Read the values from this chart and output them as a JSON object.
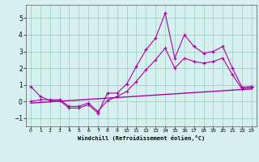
{
  "xlabel": "Windchill (Refroidissement éolien,°C)",
  "bg_color": "#d6f0f0",
  "line_color": "#aa00aa",
  "grid_color": "#99ccbb",
  "x_main": [
    0,
    1,
    2,
    3,
    4,
    5,
    6,
    7,
    8,
    9,
    10,
    11,
    12,
    13,
    14,
    15,
    16,
    17,
    18,
    19,
    20,
    21,
    22,
    23
  ],
  "y_line1": [
    0.9,
    0.3,
    0.05,
    0.05,
    -0.4,
    -0.4,
    -0.2,
    -0.7,
    0.5,
    0.5,
    1.05,
    2.1,
    3.1,
    3.8,
    5.3,
    2.6,
    4.0,
    3.3,
    2.9,
    3.0,
    3.3,
    2.0,
    0.85,
    0.9
  ],
  "y_line2": [
    0.0,
    0.1,
    0.1,
    0.1,
    -0.3,
    -0.3,
    -0.1,
    -0.6,
    0.05,
    0.3,
    0.6,
    1.2,
    1.9,
    2.5,
    3.2,
    2.0,
    2.6,
    2.4,
    2.3,
    2.4,
    2.6,
    1.6,
    0.75,
    0.85
  ],
  "y_line3_x": [
    0,
    23
  ],
  "y_line3_y": [
    -0.1,
    0.75
  ],
  "xlim": [
    -0.5,
    23.5
  ],
  "ylim": [
    -1.5,
    5.8
  ],
  "yticks": [
    -1,
    0,
    1,
    2,
    3,
    4,
    5
  ],
  "xticks": [
    0,
    1,
    2,
    3,
    4,
    5,
    6,
    7,
    8,
    9,
    10,
    11,
    12,
    13,
    14,
    15,
    16,
    17,
    18,
    19,
    20,
    21,
    22,
    23
  ]
}
